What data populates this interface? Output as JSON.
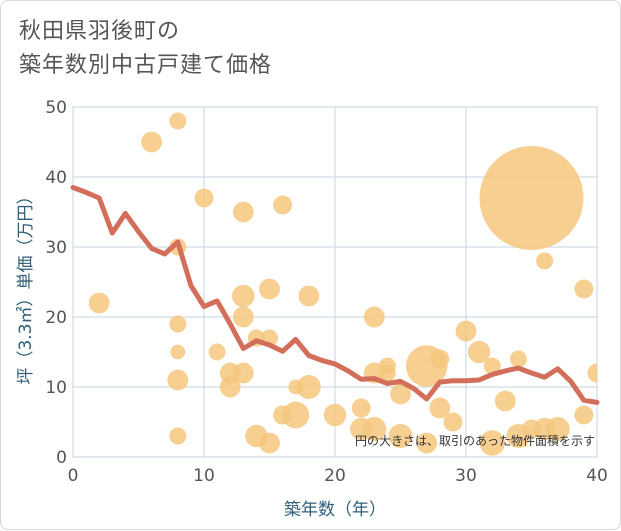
{
  "title_lines": [
    "秋田県羽後町の",
    "築年数別中古戸建て価格"
  ],
  "chart_data": {
    "type": "scatter",
    "xlabel": "築年数（年）",
    "ylabel": "坪（3.3㎡）単価（万円）",
    "xlim": [
      0,
      40
    ],
    "ylim": [
      0,
      50
    ],
    "xticks": [
      "0",
      "10",
      "20",
      "30",
      "40"
    ],
    "yticks": [
      "0",
      "10",
      "20",
      "30",
      "40",
      "50"
    ],
    "grid": true,
    "note": "円の大きさは、取引のあった物件面積を示す",
    "colors": {
      "bubble": "#f5c77e",
      "line": "#d26e5a",
      "grid": "#c5d4df",
      "axis_text": "#2f5f79"
    },
    "bubbles": [
      {
        "x": 2,
        "y": 22,
        "s": 3
      },
      {
        "x": 6,
        "y": 45,
        "s": 3
      },
      {
        "x": 8,
        "y": 48,
        "s": 2
      },
      {
        "x": 8,
        "y": 30,
        "s": 2
      },
      {
        "x": 8,
        "y": 19,
        "s": 2
      },
      {
        "x": 8,
        "y": 15,
        "s": 1.5
      },
      {
        "x": 8,
        "y": 11,
        "s": 3
      },
      {
        "x": 8,
        "y": 3,
        "s": 2
      },
      {
        "x": 10,
        "y": 37,
        "s": 2.5
      },
      {
        "x": 11,
        "y": 15,
        "s": 2
      },
      {
        "x": 12,
        "y": 12,
        "s": 3
      },
      {
        "x": 12,
        "y": 10,
        "s": 3
      },
      {
        "x": 13,
        "y": 35,
        "s": 3
      },
      {
        "x": 13,
        "y": 23,
        "s": 3.5
      },
      {
        "x": 13,
        "y": 20,
        "s": 3
      },
      {
        "x": 13,
        "y": 12,
        "s": 3
      },
      {
        "x": 14,
        "y": 17,
        "s": 2
      },
      {
        "x": 14,
        "y": 3,
        "s": 3.5
      },
      {
        "x": 15,
        "y": 24,
        "s": 3
      },
      {
        "x": 15,
        "y": 17,
        "s": 2
      },
      {
        "x": 15,
        "y": 2,
        "s": 3
      },
      {
        "x": 16,
        "y": 36,
        "s": 2.5
      },
      {
        "x": 16,
        "y": 6,
        "s": 2.5
      },
      {
        "x": 17,
        "y": 10,
        "s": 1.5
      },
      {
        "x": 17,
        "y": 6,
        "s": 5
      },
      {
        "x": 18,
        "y": 23,
        "s": 3
      },
      {
        "x": 18,
        "y": 10,
        "s": 4
      },
      {
        "x": 20,
        "y": 6,
        "s": 3.5
      },
      {
        "x": 22,
        "y": 7,
        "s": 2.5
      },
      {
        "x": 22,
        "y": 4,
        "s": 3.5
      },
      {
        "x": 23,
        "y": 20,
        "s": 3
      },
      {
        "x": 23,
        "y": 12,
        "s": 3
      },
      {
        "x": 23,
        "y": 4,
        "s": 4
      },
      {
        "x": 24,
        "y": 13,
        "s": 2
      },
      {
        "x": 24,
        "y": 12,
        "s": 2
      },
      {
        "x": 25,
        "y": 9,
        "s": 3
      },
      {
        "x": 25,
        "y": 3,
        "s": 4
      },
      {
        "x": 27,
        "y": 13,
        "s": 12
      },
      {
        "x": 27,
        "y": 2,
        "s": 3
      },
      {
        "x": 28,
        "y": 14,
        "s": 2.5
      },
      {
        "x": 28,
        "y": 7,
        "s": 3
      },
      {
        "x": 29,
        "y": 5,
        "s": 2.5
      },
      {
        "x": 30,
        "y": 18,
        "s": 3
      },
      {
        "x": 31,
        "y": 15,
        "s": 3.5
      },
      {
        "x": 32,
        "y": 13,
        "s": 2
      },
      {
        "x": 32,
        "y": 2,
        "s": 4.5
      },
      {
        "x": 33,
        "y": 8,
        "s": 3
      },
      {
        "x": 34,
        "y": 14,
        "s": 2
      },
      {
        "x": 34,
        "y": 3,
        "s": 4
      },
      {
        "x": 35,
        "y": 37,
        "s": 75
      },
      {
        "x": 35,
        "y": 4,
        "s": 2.5
      },
      {
        "x": 36,
        "y": 28,
        "s": 2
      },
      {
        "x": 36,
        "y": 4,
        "s": 3.5
      },
      {
        "x": 37,
        "y": 4,
        "s": 4
      },
      {
        "x": 39,
        "y": 24,
        "s": 2.5
      },
      {
        "x": 39,
        "y": 6,
        "s": 2.5
      },
      {
        "x": 40,
        "y": 12,
        "s": 2.5
      }
    ],
    "line": {
      "x": [
        0,
        1,
        2,
        3,
        4,
        5,
        6,
        7,
        8,
        9,
        10,
        11,
        12,
        13,
        14,
        15,
        16,
        17,
        18,
        19,
        20,
        21,
        22,
        23,
        24,
        25,
        26,
        27,
        28,
        29,
        30,
        31,
        32,
        33,
        34,
        35,
        36,
        37,
        38,
        39,
        40
      ],
      "y": [
        38.5,
        37.8,
        37,
        32,
        34.8,
        32.2,
        29.8,
        29,
        30.7,
        24.5,
        21.5,
        22.3,
        19,
        15.5,
        16.6,
        16,
        15.1,
        16.8,
        14.5,
        13.8,
        13.3,
        12.3,
        11.1,
        11.2,
        10.5,
        10.8,
        9.8,
        8.3,
        10.7,
        10.9,
        10.9,
        11,
        11.8,
        12.3,
        12.7,
        12,
        11.4,
        12.6,
        10.8,
        8.1,
        7.8
      ]
    }
  }
}
